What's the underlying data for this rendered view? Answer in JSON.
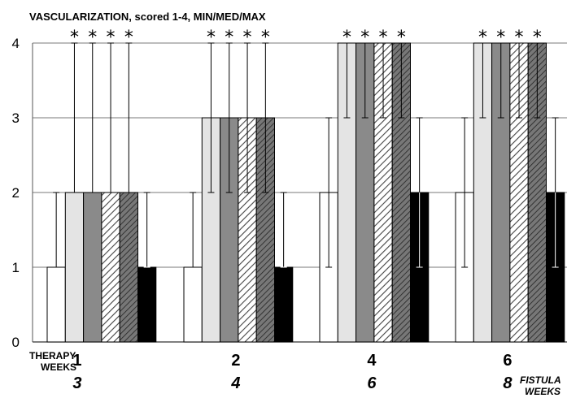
{
  "chart_data": {
    "type": "bar",
    "title": "VASCULARIZATION, scored 1-4, MIN/MED/MAX",
    "row_label_1": "THERAPY",
    "row_label_2": "WEEKS",
    "row_label_3": "FISTULA",
    "row_label_4": "WEEKS",
    "categories": [
      "1",
      "2",
      "4",
      "6"
    ],
    "categories_secondary": [
      "3",
      "4",
      "6",
      "8"
    ],
    "ylim": [
      0,
      4
    ],
    "yticks": [
      "0",
      "1",
      "2",
      "3",
      "4"
    ],
    "grid": true,
    "significance_marker": "*",
    "series": [
      {
        "fill": "white",
        "median": [
          1,
          1,
          2,
          2
        ],
        "min": [
          1,
          1,
          1,
          1
        ],
        "max": [
          2,
          2,
          3,
          3
        ],
        "significant": [
          false,
          false,
          false,
          false
        ]
      },
      {
        "fill": "lightgray",
        "median": [
          2,
          3,
          4,
          4
        ],
        "min": [
          2,
          2,
          3,
          3
        ],
        "max": [
          4,
          4,
          4,
          4
        ],
        "significant": [
          true,
          true,
          true,
          true
        ]
      },
      {
        "fill": "darkgray",
        "median": [
          2,
          3,
          4,
          4
        ],
        "min": [
          2,
          2,
          3,
          3
        ],
        "max": [
          4,
          4,
          4,
          4
        ],
        "significant": [
          true,
          true,
          true,
          true
        ]
      },
      {
        "fill": "hatch-light",
        "median": [
          2,
          3,
          4,
          4
        ],
        "min": [
          2,
          2,
          3,
          3
        ],
        "max": [
          4,
          4,
          4,
          4
        ],
        "significant": [
          true,
          true,
          true,
          true
        ]
      },
      {
        "fill": "hatch-dark",
        "median": [
          2,
          3,
          4,
          4
        ],
        "min": [
          2,
          2,
          3,
          3
        ],
        "max": [
          4,
          4,
          4,
          4
        ],
        "significant": [
          true,
          true,
          true,
          true
        ]
      },
      {
        "fill": "black",
        "median": [
          1,
          1,
          2,
          2
        ],
        "min": [
          1,
          1,
          1,
          1
        ],
        "max": [
          2,
          2,
          3,
          3
        ],
        "significant": [
          false,
          false,
          false,
          false
        ]
      }
    ],
    "colors": {
      "white": "#ffffff",
      "lightgray": "#e4e4e4",
      "darkgray": "#8a8a8a",
      "black": "#000000",
      "grid": "#7a7a7a"
    }
  }
}
